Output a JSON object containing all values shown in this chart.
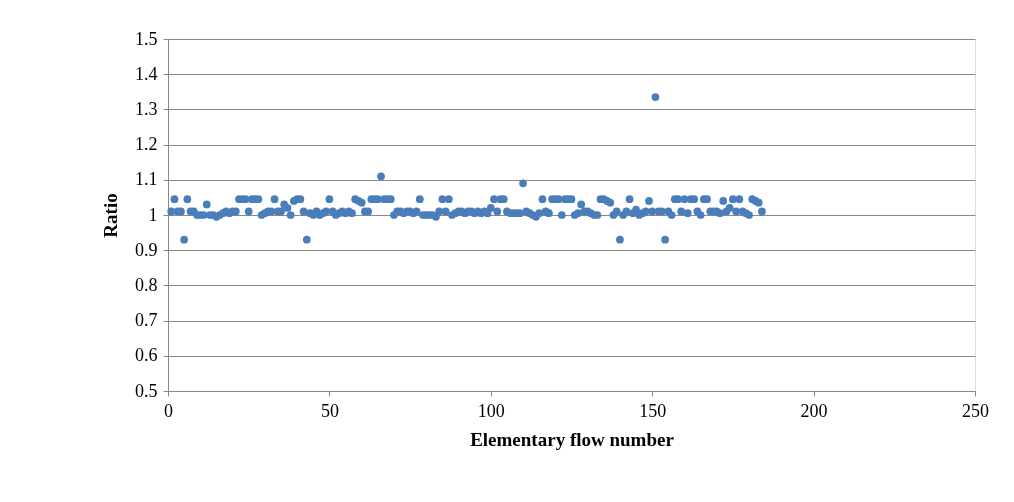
{
  "chart_data": {
    "type": "scatter",
    "xlabel": "Elementary flow number",
    "ylabel": "Ratio",
    "x": [
      1,
      2,
      3,
      4,
      5,
      6,
      7,
      8,
      9,
      10,
      11,
      12,
      13,
      14,
      15,
      16,
      17,
      18,
      19,
      20,
      21,
      22,
      23,
      24,
      25,
      26,
      27,
      28,
      29,
      30,
      31,
      32,
      33,
      34,
      35,
      36,
      37,
      38,
      39,
      40,
      41,
      42,
      43,
      44,
      45,
      46,
      47,
      48,
      49,
      50,
      51,
      52,
      53,
      54,
      55,
      56,
      57,
      58,
      59,
      60,
      61,
      62,
      63,
      64,
      65,
      66,
      67,
      68,
      69,
      70,
      71,
      72,
      73,
      74,
      75,
      76,
      77,
      78,
      79,
      80,
      81,
      82,
      83,
      84,
      85,
      86,
      87,
      88,
      89,
      90,
      91,
      92,
      93,
      94,
      95,
      96,
      97,
      98,
      99,
      100,
      101,
      102,
      103,
      104,
      105,
      106,
      107,
      108,
      109,
      110,
      111,
      112,
      113,
      114,
      115,
      116,
      117,
      118,
      119,
      120,
      121,
      122,
      123,
      124,
      125,
      126,
      127,
      128,
      129,
      130,
      131,
      132,
      133,
      134,
      135,
      136,
      137,
      138,
      139,
      140,
      141,
      142,
      143,
      144,
      145,
      146,
      147,
      148,
      149,
      150,
      151,
      152,
      153,
      154,
      155,
      156,
      157,
      158,
      159,
      160,
      161,
      162,
      163,
      164,
      165,
      166,
      167,
      168,
      169,
      170,
      171,
      172,
      173,
      174,
      175,
      176,
      177,
      178,
      179,
      180,
      181,
      182,
      183,
      184
    ],
    "values": [
      1.01,
      1.045,
      1.01,
      1.01,
      0.93,
      1.045,
      1.01,
      1.01,
      1.0,
      1.0,
      1.0,
      1.03,
      1.0,
      1.0,
      0.995,
      1.0,
      1.005,
      1.01,
      1.005,
      1.01,
      1.01,
      1.045,
      1.045,
      1.045,
      1.01,
      1.045,
      1.045,
      1.045,
      1.0,
      1.005,
      1.01,
      1.01,
      1.045,
      1.01,
      1.01,
      1.03,
      1.02,
      1.0,
      1.04,
      1.045,
      1.045,
      1.01,
      0.93,
      1.005,
      1.0,
      1.01,
      1.0,
      1.005,
      1.01,
      1.045,
      1.01,
      1.0,
      1.005,
      1.01,
      1.005,
      1.01,
      1.005,
      1.045,
      1.04,
      1.035,
      1.01,
      1.01,
      1.045,
      1.045,
      1.045,
      1.11,
      1.045,
      1.045,
      1.045,
      1.0,
      1.01,
      1.01,
      1.005,
      1.01,
      1.01,
      1.005,
      1.01,
      1.045,
      1.0,
      1.0,
      1.0,
      1.0,
      0.995,
      1.01,
      1.045,
      1.01,
      1.045,
      1.0,
      1.005,
      1.01,
      1.01,
      1.005,
      1.01,
      1.01,
      1.005,
      1.01,
      1.005,
      1.01,
      1.005,
      1.02,
      1.045,
      1.01,
      1.045,
      1.045,
      1.01,
      1.005,
      1.005,
      1.005,
      1.005,
      1.09,
      1.01,
      1.005,
      1.0,
      0.995,
      1.005,
      1.045,
      1.01,
      1.005,
      1.045,
      1.045,
      1.045,
      1.0,
      1.045,
      1.045,
      1.045,
      1.0,
      1.005,
      1.03,
      1.01,
      1.01,
      1.005,
      1.0,
      1.0,
      1.045,
      1.045,
      1.04,
      1.035,
      1.0,
      1.01,
      0.93,
      1.0,
      1.01,
      1.045,
      1.005,
      1.015,
      1.0,
      1.005,
      1.01,
      1.04,
      1.01,
      1.335,
      1.01,
      1.01,
      0.93,
      1.01,
      1.0,
      1.045,
      1.045,
      1.01,
      1.045,
      1.005,
      1.045,
      1.045,
      1.01,
      1.0,
      1.045,
      1.045,
      1.01,
      1.01,
      1.01,
      1.005,
      1.04,
      1.01,
      1.02,
      1.045,
      1.01,
      1.045,
      1.01,
      1.005,
      1.0,
      1.045,
      1.04,
      1.035,
      1.01
    ],
    "color": "#4a7ebb",
    "marker": "circle",
    "xlim": [
      0,
      250
    ],
    "xticks": [
      0,
      50,
      100,
      150,
      200,
      250
    ],
    "ylim": [
      0.5,
      1.5
    ],
    "yticks": [
      0.5,
      0.6,
      0.7,
      0.8,
      0.9,
      1,
      1.1,
      1.2,
      1.3,
      1.4,
      1.5
    ],
    "grid": "y"
  }
}
